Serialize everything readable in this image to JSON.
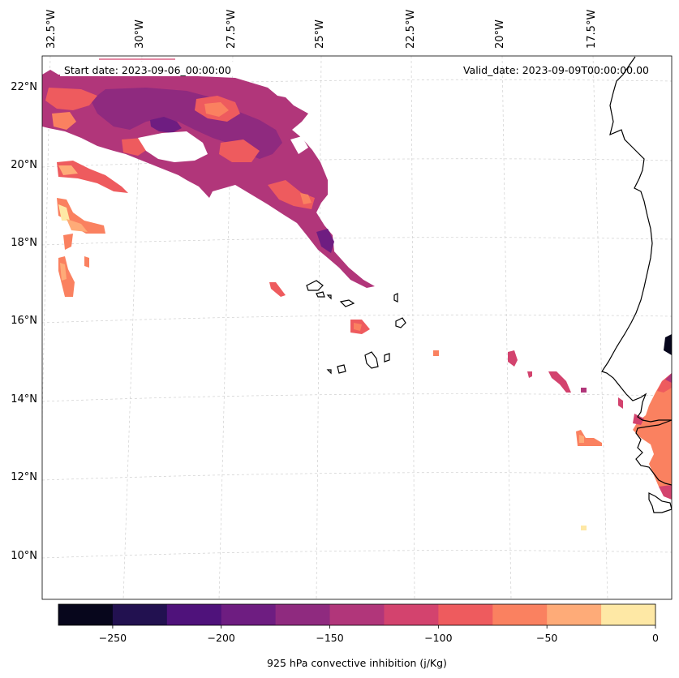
{
  "map": {
    "start_label": "Start date: 2023-09-06_00:00:00",
    "valid_label": "Valid_date: 2023-09-09T00:00:00.00",
    "lon_labels": [
      "32.5°W",
      "30°W",
      "27.5°W",
      "25°W",
      "22.5°W",
      "20°W",
      "17.5°W"
    ],
    "lat_labels": [
      "22°N",
      "20°N",
      "18°N",
      "16°N",
      "14°N",
      "12°N",
      "10°N"
    ]
  },
  "colorbar": {
    "label": "925 hPa convective inhibition (j/Kg)",
    "range": [
      -275,
      0
    ],
    "ticks": [
      "−250",
      "−200",
      "−150",
      "−100",
      "−50",
      "0"
    ],
    "tick_values": [
      -250,
      -200,
      -150,
      -100,
      -50,
      0
    ],
    "colors": [
      "#07061c",
      "#221150",
      "#4f127b",
      "#6e1d81",
      "#8f2a7f",
      "#b1367a",
      "#d3436e",
      "#ee5b5e",
      "#fa8160",
      "#feab78",
      "#fee8a5"
    ]
  }
}
